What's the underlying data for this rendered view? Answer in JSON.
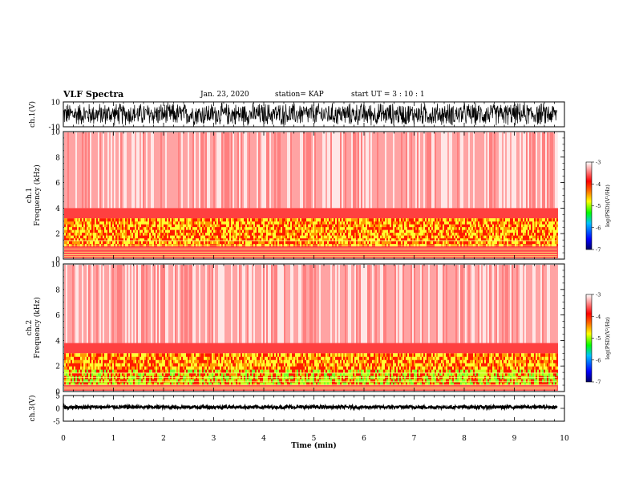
{
  "header": {
    "title": "VLF Spectra",
    "date": "Jan. 23, 2020",
    "station": "station= KAP",
    "start": "start  UT =  3 : 10 : 1"
  },
  "chart_data": [
    {
      "panel": "ch1-waveform",
      "type": "line",
      "ylabel": "ch.1(V)",
      "ylim": [
        -10,
        10
      ],
      "yticks": [
        "10",
        "-10"
      ],
      "xlim": [
        0,
        10
      ],
      "x_data_end": 9.85,
      "note_values": "dense noise waveform filling most of the ±10 V range"
    },
    {
      "panel": "ch1-spectrogram",
      "type": "heatmap",
      "ylabel_top": "ch.1",
      "ylabel": "Frequency (kHz)",
      "ylim": [
        0,
        10
      ],
      "yticks": [
        "0",
        "2",
        "4",
        "6",
        "8",
        "10"
      ],
      "xlim": [
        0,
        10
      ],
      "x_data_end": 9.85,
      "colorbar": {
        "label": "log(PSD)(V²/Hz)",
        "range": [
          -7,
          -3
        ],
        "ticks": [
          "-3",
          "-4",
          "-5",
          "-6",
          "-7"
        ]
      },
      "strong_band_khz": [
        1.0,
        3.2
      ]
    },
    {
      "panel": "ch2-spectrogram",
      "type": "heatmap",
      "ylabel_top": "ch.2",
      "ylabel": "Frequency (kHz)",
      "ylim": [
        0,
        10
      ],
      "yticks": [
        "0",
        "2",
        "4",
        "6",
        "8",
        "10"
      ],
      "xlim": [
        0,
        10
      ],
      "x_data_end": 9.85,
      "colorbar": {
        "label": "log(PSD)(V²/Hz)",
        "range": [
          -7,
          -3
        ],
        "ticks": [
          "-3",
          "-4",
          "-5",
          "-6",
          "-7"
        ]
      },
      "strong_band_khz": [
        0.5,
        3.0
      ]
    },
    {
      "panel": "ch3-waveform",
      "type": "line",
      "ylabel": "ch.3(V)",
      "ylim": [
        -5,
        5
      ],
      "yticks": [
        "5",
        "0",
        "-5"
      ],
      "xlim": [
        0,
        10
      ],
      "x_data_end": 9.85,
      "xlabel": "Time (min)",
      "xticks": [
        "0",
        "1",
        "2",
        "3",
        "4",
        "5",
        "6",
        "7",
        "8",
        "9",
        "10"
      ],
      "note_values": "near-constant signal around 0.5 V with small fluctuations"
    }
  ],
  "colors": {
    "waveform": "#000000",
    "colormap": [
      "#000080",
      "#0000ff",
      "#00c8ff",
      "#00ff00",
      "#c8ff00",
      "#ffff00",
      "#ff8000",
      "#ff0000",
      "#ffffff"
    ]
  }
}
